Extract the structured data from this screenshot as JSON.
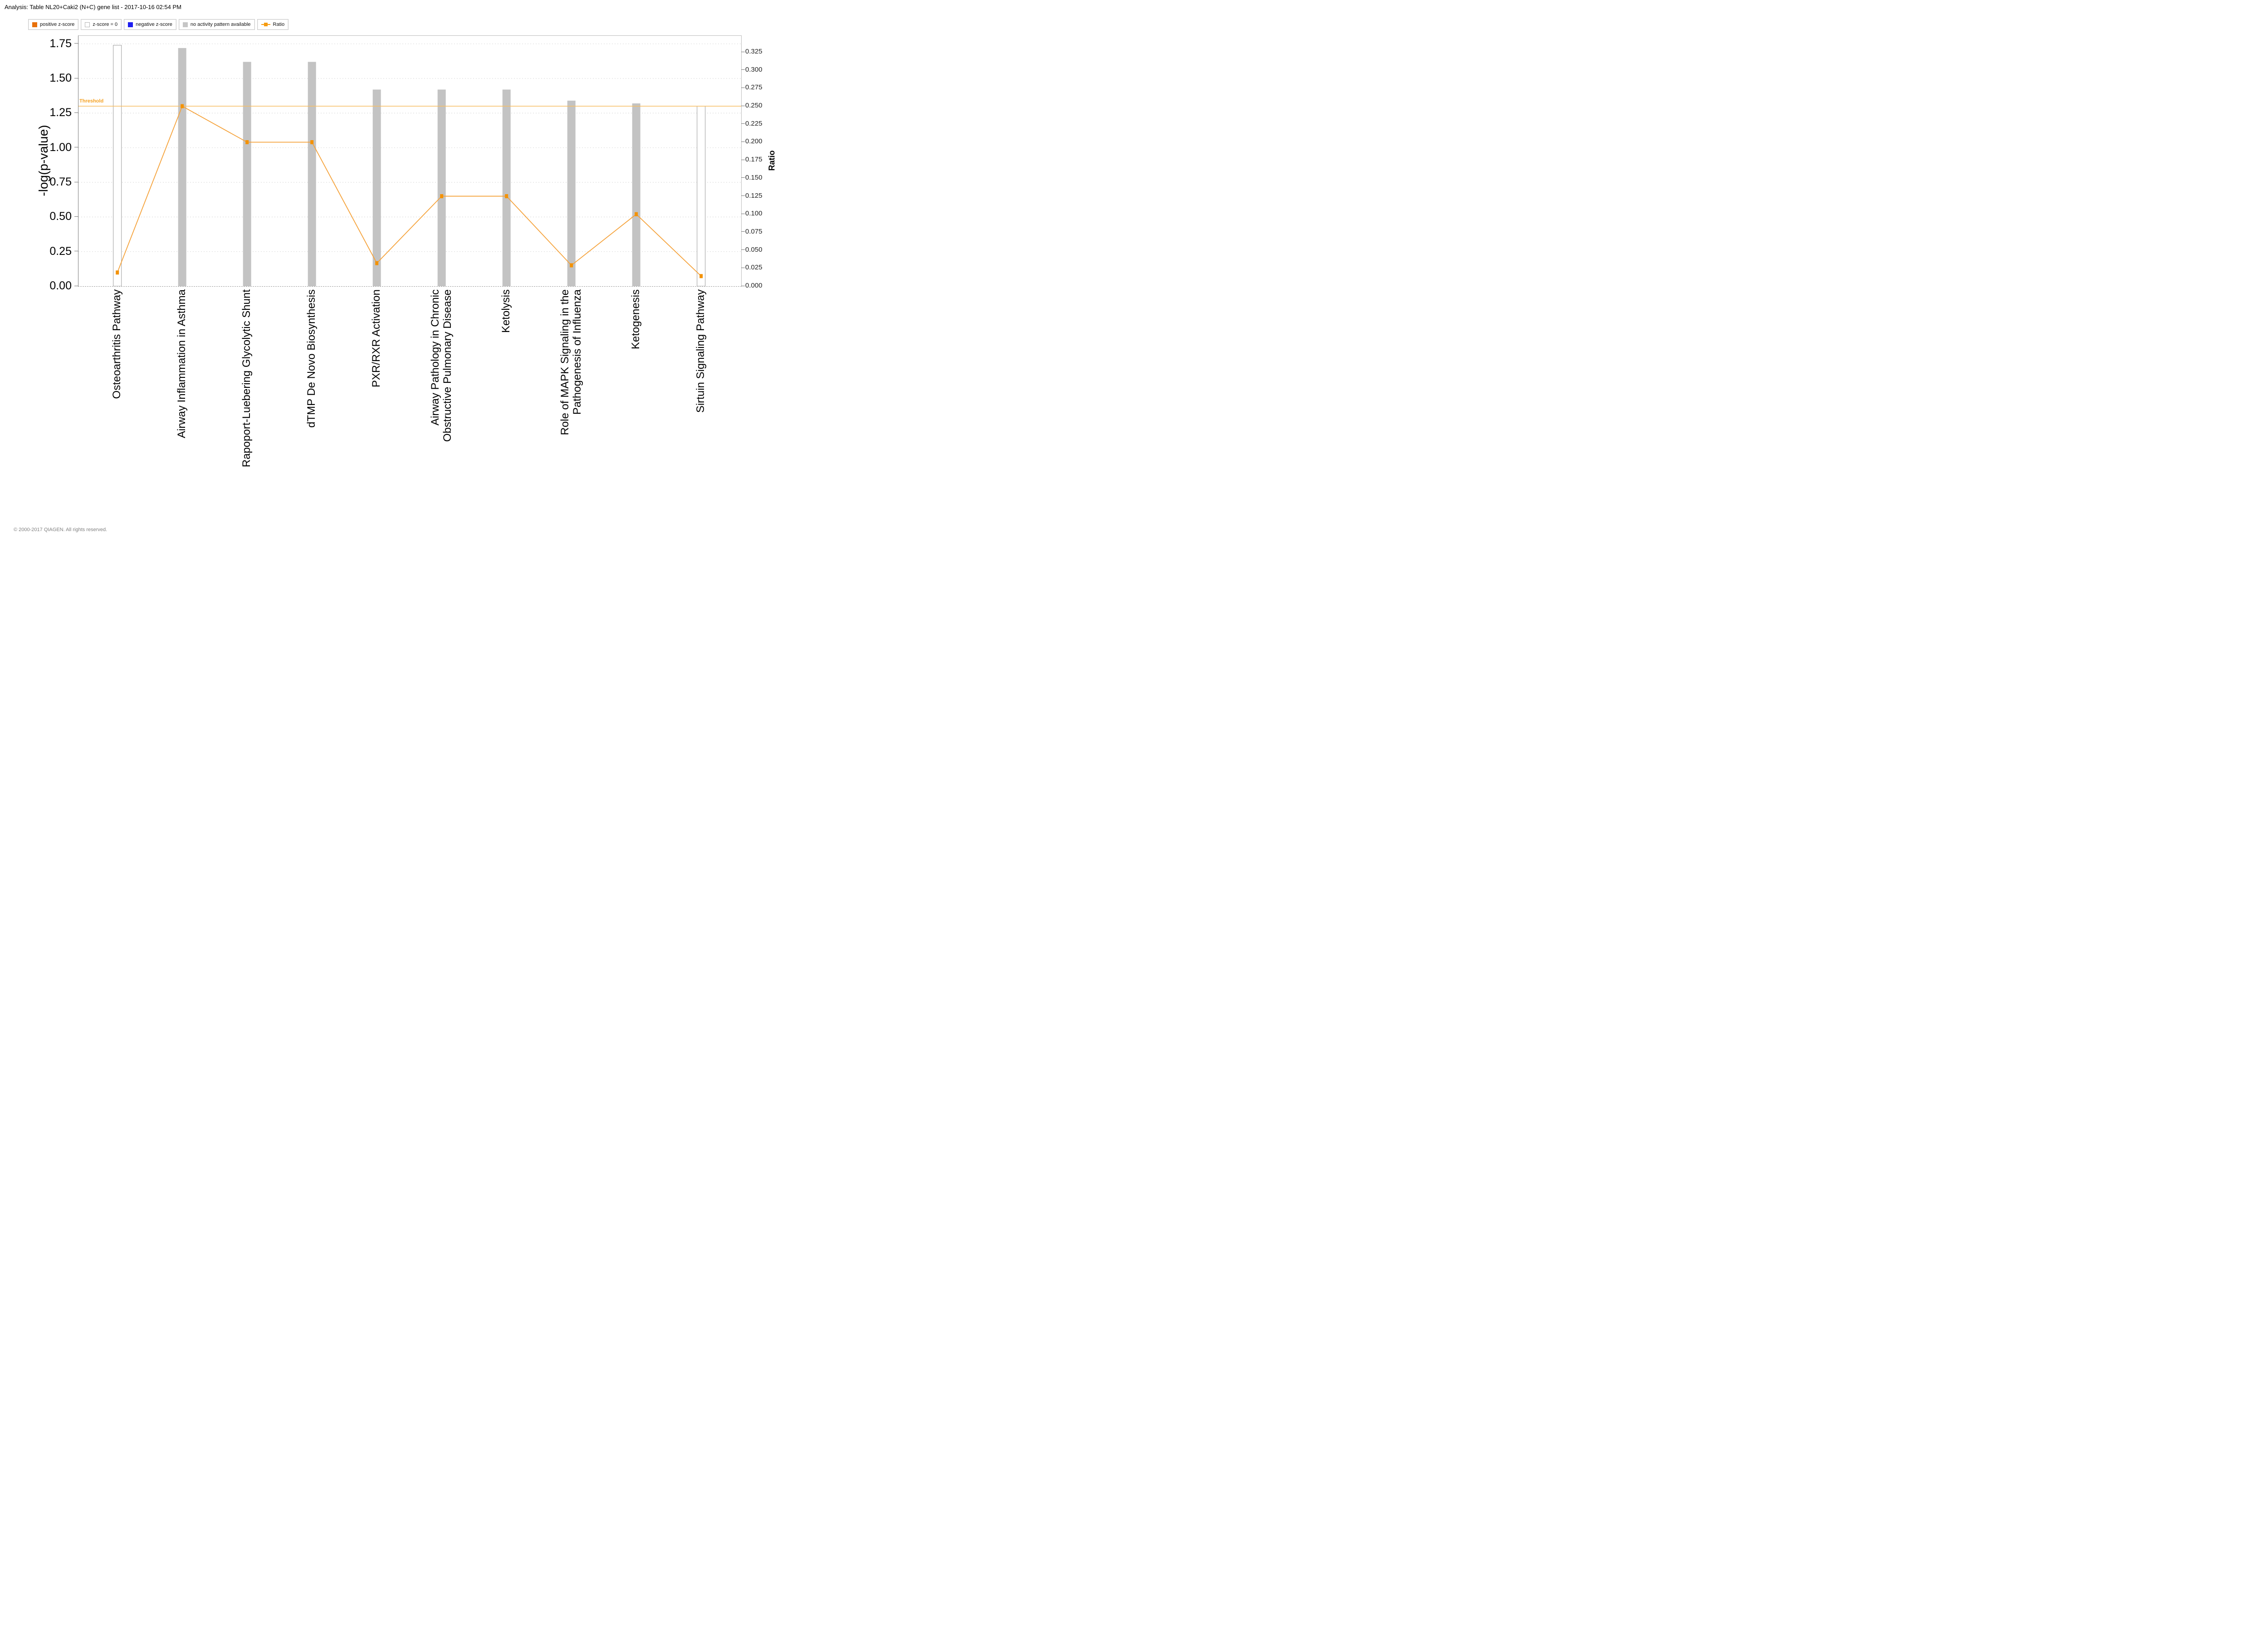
{
  "header": {
    "title": "Analysis: Table NL20+Caki2 (N+C) gene list - 2017-10-16 02:54 PM"
  },
  "footer": {
    "copyright": "© 2000-2017 QIAGEN. All rights reserved."
  },
  "legend": {
    "items": [
      {
        "label": "positive z-score",
        "swatch": "square",
        "color": "#e8700a"
      },
      {
        "label": "z-score = 0",
        "swatch": "square-outline",
        "color": "#ffffff"
      },
      {
        "label": "negative z-score",
        "swatch": "square",
        "color": "#1e1ef0"
      },
      {
        "label": "no activity pattern available",
        "swatch": "square",
        "color": "#c6c6c6"
      },
      {
        "label": "Ratio",
        "swatch": "line-square",
        "color": "#f59b0f"
      }
    ]
  },
  "chart_data": {
    "type": "bar",
    "subtype": "combo-bar-line-dual-axis",
    "categories": [
      [
        "Osteoarthritis Pathway"
      ],
      [
        "Airway Inflammation in Asthma"
      ],
      [
        "Rapoport-Luebering Glycolytic Shunt"
      ],
      [
        "dTMP De Novo Biosynthesis"
      ],
      [
        "PXR/RXR Activation"
      ],
      [
        "Airway Pathology in Chronic",
        "Obstructive Pulmonary Disease"
      ],
      [
        "Ketolysis"
      ],
      [
        "Role of MAPK Signaling in the",
        "Pathogenesis of Influenza"
      ],
      [
        "Ketogenesis"
      ],
      [
        "Sirtuin Signaling Pathway"
      ]
    ],
    "series": [
      {
        "name": "-log(p-value)",
        "type": "bar",
        "values": [
          1.74,
          1.72,
          1.62,
          1.62,
          1.42,
          1.42,
          1.42,
          1.34,
          1.32,
          1.3
        ],
        "styles": [
          "z-score-0",
          "no-activity",
          "no-activity",
          "no-activity",
          "no-activity",
          "no-activity",
          "no-activity",
          "no-activity",
          "no-activity",
          "z-score-0"
        ]
      },
      {
        "name": "Ratio",
        "type": "line",
        "values": [
          0.019,
          0.25,
          0.2,
          0.2,
          0.032,
          0.125,
          0.125,
          0.029,
          0.1,
          0.014
        ]
      }
    ],
    "threshold": {
      "label": "Threshold",
      "value": 1.3
    },
    "left_axis": {
      "title": "-log(p-value)",
      "min": 0,
      "max": 1.75,
      "ticks": [
        "0.00",
        "0.25",
        "0.50",
        "0.75",
        "1.00",
        "1.25",
        "1.50",
        "1.75"
      ]
    },
    "right_axis": {
      "title": "Ratio",
      "min": 0,
      "max": 0.325,
      "ticks": [
        "0.000",
        "0.025",
        "0.050",
        "0.075",
        "0.100",
        "0.125",
        "0.150",
        "0.175",
        "0.200",
        "0.225",
        "0.250",
        "0.275",
        "0.300",
        "0.325"
      ]
    },
    "grid": "horizontal-dotted",
    "legend_position": "top-left",
    "colors": {
      "bar_no_activity": "#c3c3c3",
      "bar_zscore0_fill": "#ffffff",
      "bar_zscore0_border": "#9a9a9a",
      "ratio_line": "#f5a33c",
      "ratio_marker": "#f39207",
      "threshold_line": "#f7bd62",
      "threshold_text": "#f5a020",
      "gridline": "#d9d9d9"
    }
  }
}
